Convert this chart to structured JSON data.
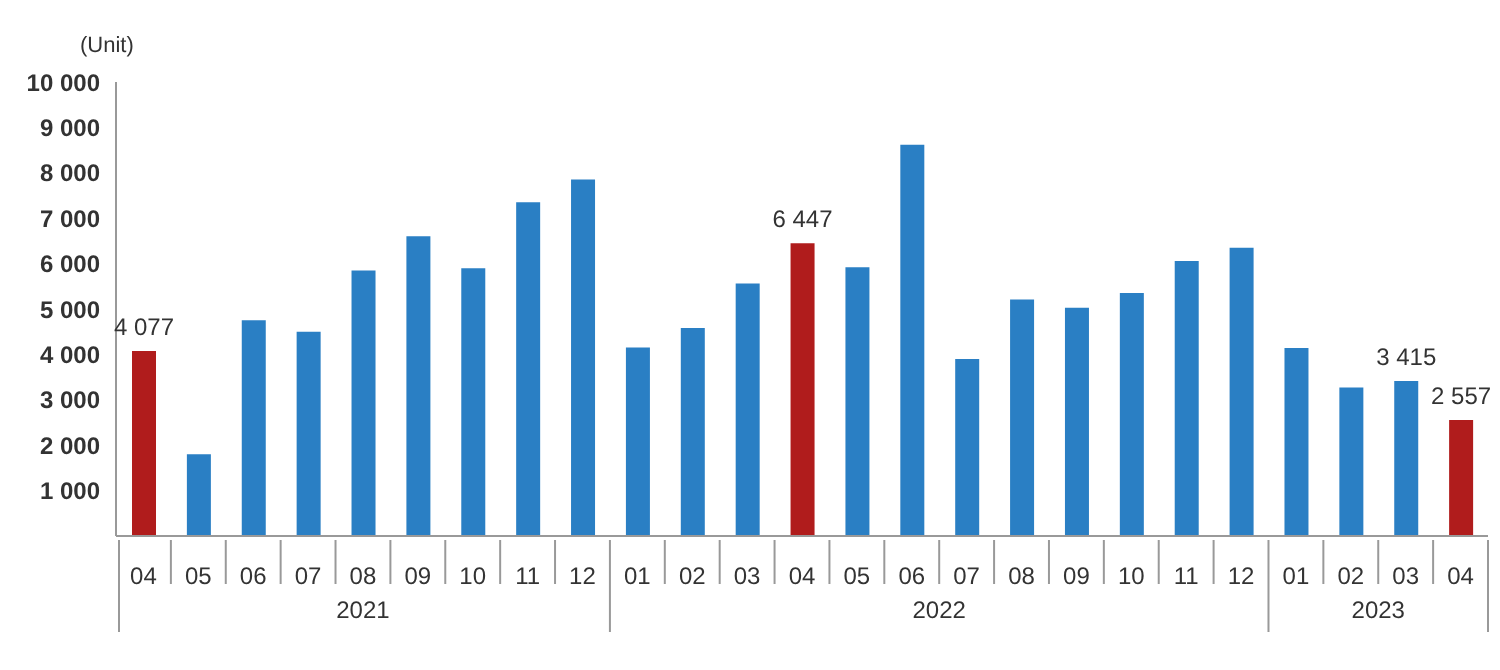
{
  "chart_data": {
    "type": "bar",
    "ylabel": "(Unit)",
    "categories": [
      "04",
      "05",
      "06",
      "07",
      "08",
      "09",
      "10",
      "11",
      "12",
      "01",
      "02",
      "03",
      "04",
      "05",
      "06",
      "07",
      "08",
      "09",
      "10",
      "11",
      "12",
      "01",
      "02",
      "03",
      "04"
    ],
    "values": [
      4077,
      1800,
      4750,
      4500,
      5850,
      6600,
      5900,
      7350,
      7850,
      4150,
      4580,
      5560,
      6447,
      5920,
      8620,
      3900,
      5210,
      5030,
      5350,
      6060,
      6350,
      4140,
      3270,
      3415,
      2557
    ],
    "colors": [
      "#b01c1c",
      "#2a7fc4",
      "#2a7fc4",
      "#2a7fc4",
      "#2a7fc4",
      "#2a7fc4",
      "#2a7fc4",
      "#2a7fc4",
      "#2a7fc4",
      "#2a7fc4",
      "#2a7fc4",
      "#2a7fc4",
      "#b01c1c",
      "#2a7fc4",
      "#2a7fc4",
      "#2a7fc4",
      "#2a7fc4",
      "#2a7fc4",
      "#2a7fc4",
      "#2a7fc4",
      "#2a7fc4",
      "#2a7fc4",
      "#2a7fc4",
      "#2a7fc4",
      "#b01c1c"
    ],
    "value_labels": [
      "4 077",
      null,
      null,
      null,
      null,
      null,
      null,
      null,
      null,
      null,
      null,
      null,
      "6 447",
      null,
      null,
      null,
      null,
      null,
      null,
      null,
      null,
      null,
      null,
      "3 415",
      "2 557"
    ],
    "ylim": [
      0,
      10000
    ],
    "yticks": [
      {
        "value": 0,
        "label": null
      },
      {
        "value": 1000,
        "label": "1 000"
      },
      {
        "value": 2000,
        "label": "2 000"
      },
      {
        "value": 3000,
        "label": "3 000"
      },
      {
        "value": 4000,
        "label": "4 000"
      },
      {
        "value": 5000,
        "label": "5 000"
      },
      {
        "value": 6000,
        "label": "6 000"
      },
      {
        "value": 7000,
        "label": "7 000"
      },
      {
        "value": 8000,
        "label": "8 000"
      },
      {
        "value": 9000,
        "label": "9 000"
      },
      {
        "value": 10000,
        "label": "10 000"
      }
    ],
    "annotations": [
      "2021",
      "2022",
      "2023"
    ],
    "grid": false,
    "legend": false
  }
}
